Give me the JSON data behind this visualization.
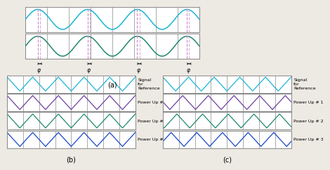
{
  "title_a": "(a)",
  "title_b": "(b)",
  "title_c": "(c)",
  "bg_color": "#ede9e3",
  "panel_bg": "#ffffff",
  "grid_color": "#888888",
  "cyan_color": "#1ab5d4",
  "purple_color": "#7040a0",
  "green_color": "#208870",
  "blue_color": "#1845c8",
  "dashed_color": "#cc88cc",
  "label_ref": "Signal\nfor\nReference",
  "label_pu1": "Power Up # 1",
  "label_pu2": "Power Up # 2",
  "label_pu3": "Power Up # 3",
  "phi_label": "φ",
  "fig_width": 4.35,
  "fig_height": 2.64,
  "sep_color": "#999999"
}
